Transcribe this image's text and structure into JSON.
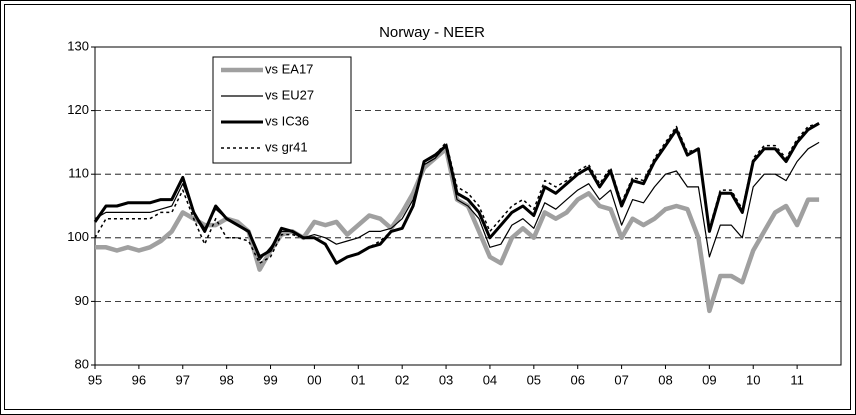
{
  "chart_data": {
    "type": "line",
    "title": "Norway - NEER",
    "x": [
      1995,
      1995.25,
      1995.5,
      1995.75,
      1996,
      1996.25,
      1996.5,
      1996.75,
      1997,
      1997.25,
      1997.5,
      1997.75,
      1998,
      1998.25,
      1998.5,
      1998.75,
      1999,
      1999.25,
      1999.5,
      1999.75,
      2000,
      2000.25,
      2000.5,
      2000.75,
      2001,
      2001.25,
      2001.5,
      2001.75,
      2002,
      2002.25,
      2002.5,
      2002.75,
      2003,
      2003.25,
      2003.5,
      2003.75,
      2004,
      2004.25,
      2004.5,
      2004.75,
      2005,
      2005.25,
      2005.5,
      2005.75,
      2006,
      2006.25,
      2006.5,
      2006.75,
      2007,
      2007.25,
      2007.5,
      2007.75,
      2008,
      2008.25,
      2008.5,
      2008.75,
      2009,
      2009.25,
      2009.5,
      2009.75,
      2010,
      2010.25,
      2010.5,
      2010.75,
      2011,
      2011.25,
      2011.5
    ],
    "series": [
      {
        "name": "vs EA17",
        "color": "#a0a0a0",
        "line_width": 4.5,
        "dashed": false,
        "values": [
          98.5,
          98.5,
          98,
          98.5,
          98,
          98.5,
          99.5,
          101,
          104,
          103,
          102,
          102,
          103,
          102.5,
          101,
          95,
          98,
          100.5,
          101,
          100,
          102.5,
          102,
          102.5,
          100.5,
          102,
          103.5,
          103,
          101.5,
          104,
          107,
          111,
          112.5,
          114,
          106,
          105,
          101,
          97,
          96,
          100,
          101.5,
          100,
          104,
          103,
          104,
          106,
          107,
          105,
          104.5,
          100,
          103,
          102,
          103,
          104.5,
          105,
          104.5,
          100,
          88.5,
          94,
          94,
          93,
          98,
          101,
          104,
          105,
          102,
          106,
          106
        ]
      },
      {
        "name": "vs EU27",
        "color": "#000000",
        "line_width": 1.2,
        "dashed": false,
        "values": [
          103,
          104,
          104,
          104,
          104,
          104,
          104.5,
          105,
          108.5,
          104,
          101.5,
          104.5,
          103,
          102,
          101,
          96.5,
          98.5,
          101,
          101,
          100,
          100.5,
          100,
          99,
          99.5,
          100,
          101,
          101,
          101.5,
          103,
          106,
          111.5,
          112.5,
          114.5,
          106,
          105,
          103,
          98.5,
          99,
          102,
          103,
          101.5,
          105.5,
          104.5,
          106,
          107.5,
          108.5,
          106,
          107.5,
          102,
          106,
          105.5,
          108,
          110,
          110.5,
          108,
          108,
          97,
          102,
          102,
          100,
          108,
          110,
          110,
          109,
          112,
          114,
          115
        ]
      },
      {
        "name": "vs IC36",
        "color": "#000000",
        "line_width": 3,
        "dashed": false,
        "values": [
          102.5,
          105,
          105,
          105.5,
          105.5,
          105.5,
          106,
          106,
          109.5,
          104,
          101,
          105,
          103,
          102,
          101,
          97,
          98,
          101.5,
          101,
          100,
          100,
          99,
          96,
          97,
          97.5,
          98.5,
          99,
          101,
          101.5,
          105,
          112,
          113,
          114.5,
          107,
          106,
          104,
          100,
          102,
          104,
          105,
          103.5,
          108,
          107,
          108.5,
          110,
          111,
          108,
          110.5,
          105,
          109,
          108.5,
          112,
          114.5,
          117,
          113,
          114,
          101,
          107,
          107,
          104,
          112,
          114,
          114,
          112,
          115,
          117,
          118
        ]
      },
      {
        "name": "vs gr41",
        "color": "#000000",
        "line_width": 1.5,
        "dashed": true,
        "values": [
          100,
          103,
          103,
          103,
          103,
          103,
          104,
          104,
          107.5,
          103,
          99,
          103,
          100,
          100,
          99.5,
          96,
          97,
          100.5,
          100.5,
          100,
          100,
          99,
          96,
          97,
          97.5,
          98.5,
          99.5,
          101,
          101.5,
          105,
          112,
          113,
          115,
          108,
          107,
          105,
          101,
          103,
          105,
          106,
          104.5,
          109,
          108,
          109,
          110.5,
          111.5,
          108.5,
          111,
          105.5,
          109.5,
          109,
          112.5,
          115,
          117.5,
          113.5,
          114,
          101.5,
          107.5,
          107.5,
          104.5,
          112.5,
          114.5,
          114.5,
          112.5,
          115.5,
          117.5,
          118
        ]
      }
    ],
    "xlim": [
      1995,
      2012
    ],
    "xticks": [
      {
        "value": 1995,
        "label": "95"
      },
      {
        "value": 1996,
        "label": "96"
      },
      {
        "value": 1997,
        "label": "97"
      },
      {
        "value": 1998,
        "label": "98"
      },
      {
        "value": 1999,
        "label": "99"
      },
      {
        "value": 2000,
        "label": "00"
      },
      {
        "value": 2001,
        "label": "01"
      },
      {
        "value": 2002,
        "label": "02"
      },
      {
        "value": 2003,
        "label": "03"
      },
      {
        "value": 2004,
        "label": "04"
      },
      {
        "value": 2005,
        "label": "05"
      },
      {
        "value": 2006,
        "label": "06"
      },
      {
        "value": 2007,
        "label": "07"
      },
      {
        "value": 2008,
        "label": "08"
      },
      {
        "value": 2009,
        "label": "09"
      },
      {
        "value": 2010,
        "label": "10"
      },
      {
        "value": 2011,
        "label": "11"
      }
    ],
    "ylim": [
      80,
      130
    ],
    "yticks": [
      80,
      90,
      100,
      110,
      120,
      130
    ],
    "grid": true
  }
}
